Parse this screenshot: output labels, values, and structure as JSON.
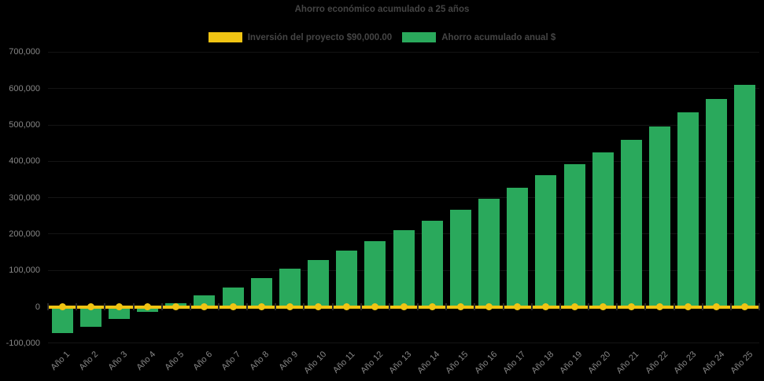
{
  "title": "Ahorro económico acumulado a 25 años",
  "legend": {
    "items": [
      {
        "label": "Inversión del proyecto $90,000.00",
        "color": "#F0C413",
        "series_type": "line"
      },
      {
        "label": "Ahorro acumulado anual $",
        "color": "#2AA95C",
        "series_type": "bar"
      }
    ]
  },
  "colors": {
    "background": "#000000",
    "bar_green": "#2AA95C",
    "line_yellow": "#F0C413",
    "title_text": "#454545",
    "axis_label_text": "#878787"
  },
  "chart_data": {
    "type": "bar",
    "title": "Ahorro económico acumulado a 25 años",
    "categories": [
      "Año 1",
      "Año 2",
      "Año 3",
      "Año 4",
      "Año 5",
      "Año 6",
      "Año 7",
      "Año 8",
      "Año 9",
      "Año 10",
      "Año 11",
      "Año 12",
      "Año 13",
      "Año 14",
      "Año 15",
      "Año 16",
      "Año 17",
      "Año 18",
      "Año 19",
      "Año 20",
      "Año 21",
      "Año 22",
      "Año 23",
      "Año 24",
      "Año 25"
    ],
    "series": [
      {
        "name": "Inversión del proyecto $90,000.00",
        "type": "line",
        "color": "#F0C413",
        "marker": "circle",
        "values": [
          0,
          0,
          0,
          0,
          0,
          0,
          0,
          0,
          0,
          0,
          0,
          0,
          0,
          0,
          0,
          0,
          0,
          0,
          0,
          0,
          0,
          0,
          0,
          0,
          0
        ]
      },
      {
        "name": "Ahorro acumulado anual $",
        "type": "bar",
        "color": "#2AA95C",
        "values": [
          -73000,
          -55000,
          -33000,
          -13000,
          10000,
          31000,
          53000,
          78000,
          104000,
          128000,
          154000,
          181000,
          210000,
          236000,
          266000,
          297000,
          327000,
          361000,
          392000,
          425000,
          459000,
          496000,
          534000,
          572000,
          610000
        ]
      }
    ],
    "xlabel": "",
    "ylabel": "",
    "ylim": [
      -100000,
      700000
    ],
    "y_ticks": [
      {
        "value": 700000,
        "label": "700,000"
      },
      {
        "value": 600000,
        "label": "600,000"
      },
      {
        "value": 500000,
        "label": "500,000"
      },
      {
        "value": 400000,
        "label": "400,000"
      },
      {
        "value": 300000,
        "label": "300,000"
      },
      {
        "value": 200000,
        "label": "200,000"
      },
      {
        "value": 100000,
        "label": "100,000"
      },
      {
        "value": 0,
        "label": "0"
      },
      {
        "value": -100000,
        "label": "-100,000"
      }
    ],
    "legend_position": "top",
    "x_tick_rotation": 45,
    "grid": "horizontal, barely visible on black background",
    "background": "#000000"
  }
}
